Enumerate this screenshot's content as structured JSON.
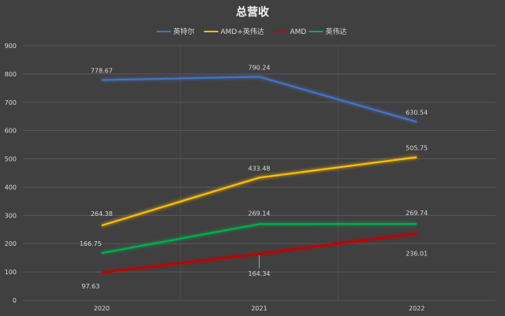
{
  "chart_data": {
    "type": "line",
    "title": "总营收",
    "categories": [
      "2020",
      "2021",
      "2022"
    ],
    "ylim": [
      0,
      900
    ],
    "yticks": [
      0,
      100,
      200,
      300,
      400,
      500,
      600,
      700,
      800,
      900
    ],
    "grid": true,
    "legend_position": "top",
    "series": [
      {
        "name": "英特尔",
        "values": [
          778.67,
          790.24,
          630.54
        ],
        "color": "#4472c4"
      },
      {
        "name": "AMD+英伟达",
        "values": [
          264.38,
          433.48,
          505.75
        ],
        "color": "#ffc000"
      },
      {
        "name": "AMD",
        "values": [
          97.63,
          164.34,
          236.01
        ],
        "color": "#c00000"
      },
      {
        "name": "英伟达",
        "values": [
          166.75,
          269.14,
          269.74
        ],
        "color": "#00b050"
      }
    ],
    "data_labels": [
      [
        "778.67",
        "790.24",
        "630.54"
      ],
      [
        "264.38",
        "433.48",
        "505.75"
      ],
      [
        "97.63",
        "164.34",
        "236.01"
      ],
      [
        "166.75",
        "269.14",
        "269.74"
      ]
    ]
  }
}
